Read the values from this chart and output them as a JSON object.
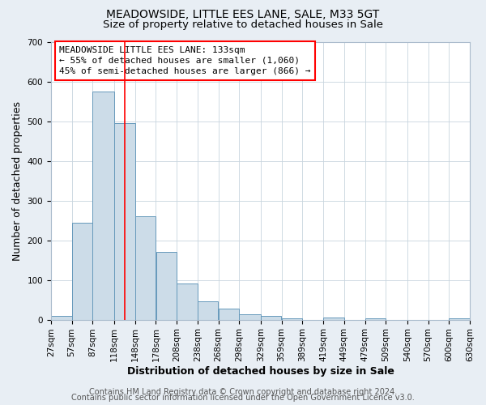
{
  "title": "MEADOWSIDE, LITTLE EES LANE, SALE, M33 5GT",
  "subtitle": "Size of property relative to detached houses in Sale",
  "xlabel": "Distribution of detached houses by size in Sale",
  "ylabel": "Number of detached properties",
  "bar_left_edges": [
    27,
    57,
    87,
    118,
    148,
    178,
    208,
    238,
    268,
    298,
    329,
    359,
    389,
    419,
    449,
    479,
    509,
    540,
    570,
    600
  ],
  "bar_heights": [
    10,
    245,
    575,
    495,
    260,
    170,
    90,
    47,
    27,
    13,
    10,
    3,
    0,
    5,
    0,
    3,
    0,
    0,
    0,
    3
  ],
  "bar_widths": [
    30,
    30,
    31,
    30,
    30,
    30,
    30,
    30,
    30,
    31,
    30,
    30,
    30,
    30,
    30,
    30,
    31,
    30,
    30,
    30
  ],
  "bar_color": "#ccdce8",
  "bar_edge_color": "#6699bb",
  "bar_edge_width": 0.7,
  "ylim": [
    0,
    700
  ],
  "yticks": [
    0,
    100,
    200,
    300,
    400,
    500,
    600,
    700
  ],
  "xtick_labels": [
    "27sqm",
    "57sqm",
    "87sqm",
    "118sqm",
    "148sqm",
    "178sqm",
    "208sqm",
    "238sqm",
    "268sqm",
    "298sqm",
    "329sqm",
    "359sqm",
    "389sqm",
    "419sqm",
    "449sqm",
    "479sqm",
    "509sqm",
    "540sqm",
    "570sqm",
    "600sqm",
    "630sqm"
  ],
  "xlim_left": 27,
  "xlim_right": 630,
  "marker_x": 133,
  "marker_color": "red",
  "annotation_title": "MEADOWSIDE LITTLE EES LANE: 133sqm",
  "annotation_line1": "← 55% of detached houses are smaller (1,060)",
  "annotation_line2": "45% of semi-detached houses are larger (866) →",
  "annotation_box_color": "white",
  "annotation_box_edge": "red",
  "footer1": "Contains HM Land Registry data © Crown copyright and database right 2024.",
  "footer2": "Contains public sector information licensed under the Open Government Licence v3.0.",
  "bg_color": "#e8eef4",
  "plot_bg_color": "white",
  "grid_color": "#c8d4de",
  "title_fontsize": 10,
  "subtitle_fontsize": 9.5,
  "axis_label_fontsize": 9,
  "tick_fontsize": 7.5,
  "annotation_fontsize": 8,
  "footer_fontsize": 7
}
